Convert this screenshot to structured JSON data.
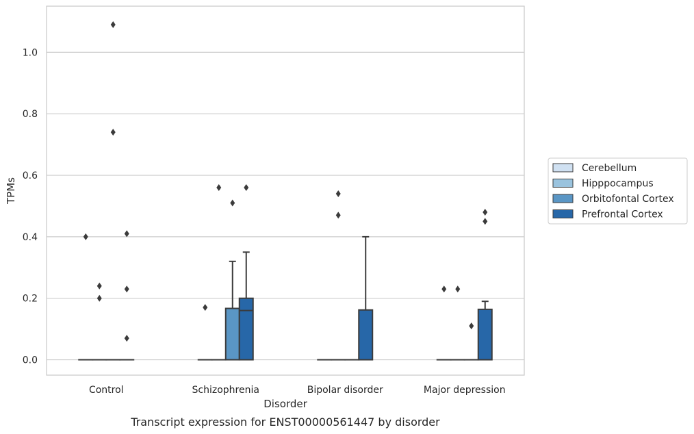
{
  "chart_data": {
    "type": "box",
    "title": "",
    "caption": "Transcript expression for ENST00000561447 by disorder",
    "xlabel": "Disorder",
    "ylabel": "TPMs",
    "ylim": [
      -0.05,
      1.15
    ],
    "yticks": [
      0.0,
      0.2,
      0.4,
      0.6,
      0.8,
      1.0
    ],
    "ytick_labels": [
      "0.0",
      "0.2",
      "0.4",
      "0.6",
      "0.8",
      "1.0"
    ],
    "categories": [
      "Control",
      "Schizophrenia",
      "Bipolar disorder",
      "Major depression"
    ],
    "grid": "horizontal",
    "legend_position": "right",
    "series": [
      {
        "name": "Cerebellum",
        "color": "#d0e1f2",
        "boxes": [
          {
            "q1": 0,
            "median": 0,
            "q3": 0,
            "whisker_low": 0,
            "whisker_high": 0,
            "outliers": [
              0.4
            ]
          },
          {
            "q1": 0,
            "median": 0,
            "q3": 0,
            "whisker_low": 0,
            "whisker_high": 0,
            "outliers": [
              0.17
            ]
          },
          {
            "q1": 0,
            "median": 0,
            "q3": 0,
            "whisker_low": 0,
            "whisker_high": 0,
            "outliers": []
          },
          {
            "q1": 0,
            "median": 0,
            "q3": 0,
            "whisker_low": 0,
            "whisker_high": 0,
            "outliers": [
              0.23
            ]
          }
        ]
      },
      {
        "name": "Hipppocampus",
        "color": "#9ac3de",
        "boxes": [
          {
            "q1": 0,
            "median": 0,
            "q3": 0,
            "whisker_low": 0,
            "whisker_high": 0,
            "outliers": [
              0.24,
              0.2
            ]
          },
          {
            "q1": 0,
            "median": 0,
            "q3": 0,
            "whisker_low": 0,
            "whisker_high": 0,
            "outliers": [
              0.56
            ]
          },
          {
            "q1": 0,
            "median": 0,
            "q3": 0,
            "whisker_low": 0,
            "whisker_high": 0,
            "outliers": [
              0.54,
              0.47
            ]
          },
          {
            "q1": 0,
            "median": 0,
            "q3": 0,
            "whisker_low": 0,
            "whisker_high": 0,
            "outliers": [
              0.23
            ]
          }
        ]
      },
      {
        "name": "Orbitofontal Cortex",
        "color": "#5a96c5",
        "boxes": [
          {
            "q1": 0,
            "median": 0,
            "q3": 0,
            "whisker_low": 0,
            "whisker_high": 0,
            "outliers": [
              1.09,
              0.74
            ]
          },
          {
            "q1": 0,
            "median": 0,
            "q3": 0.167,
            "whisker_low": 0,
            "whisker_high": 0.32,
            "outliers": [
              0.51
            ]
          },
          {
            "q1": 0,
            "median": 0,
            "q3": 0,
            "whisker_low": 0,
            "whisker_high": 0,
            "outliers": []
          },
          {
            "q1": 0,
            "median": 0,
            "q3": 0,
            "whisker_low": 0,
            "whisker_high": 0,
            "outliers": [
              0.11
            ]
          }
        ]
      },
      {
        "name": "Prefrontal Cortex",
        "color": "#2767a8",
        "boxes": [
          {
            "q1": 0,
            "median": 0,
            "q3": 0,
            "whisker_low": 0,
            "whisker_high": 0,
            "outliers": [
              0.41,
              0.23,
              0.07
            ]
          },
          {
            "q1": 0,
            "median": 0.16,
            "q3": 0.2,
            "whisker_low": 0,
            "whisker_high": 0.35,
            "outliers": [
              0.56
            ]
          },
          {
            "q1": 0,
            "median": 0,
            "q3": 0.162,
            "whisker_low": 0,
            "whisker_high": 0.4,
            "outliers": []
          },
          {
            "q1": 0,
            "median": 0,
            "q3": 0.164,
            "whisker_low": 0,
            "whisker_high": 0.19,
            "outliers": [
              0.48,
              0.45
            ]
          }
        ]
      }
    ]
  }
}
